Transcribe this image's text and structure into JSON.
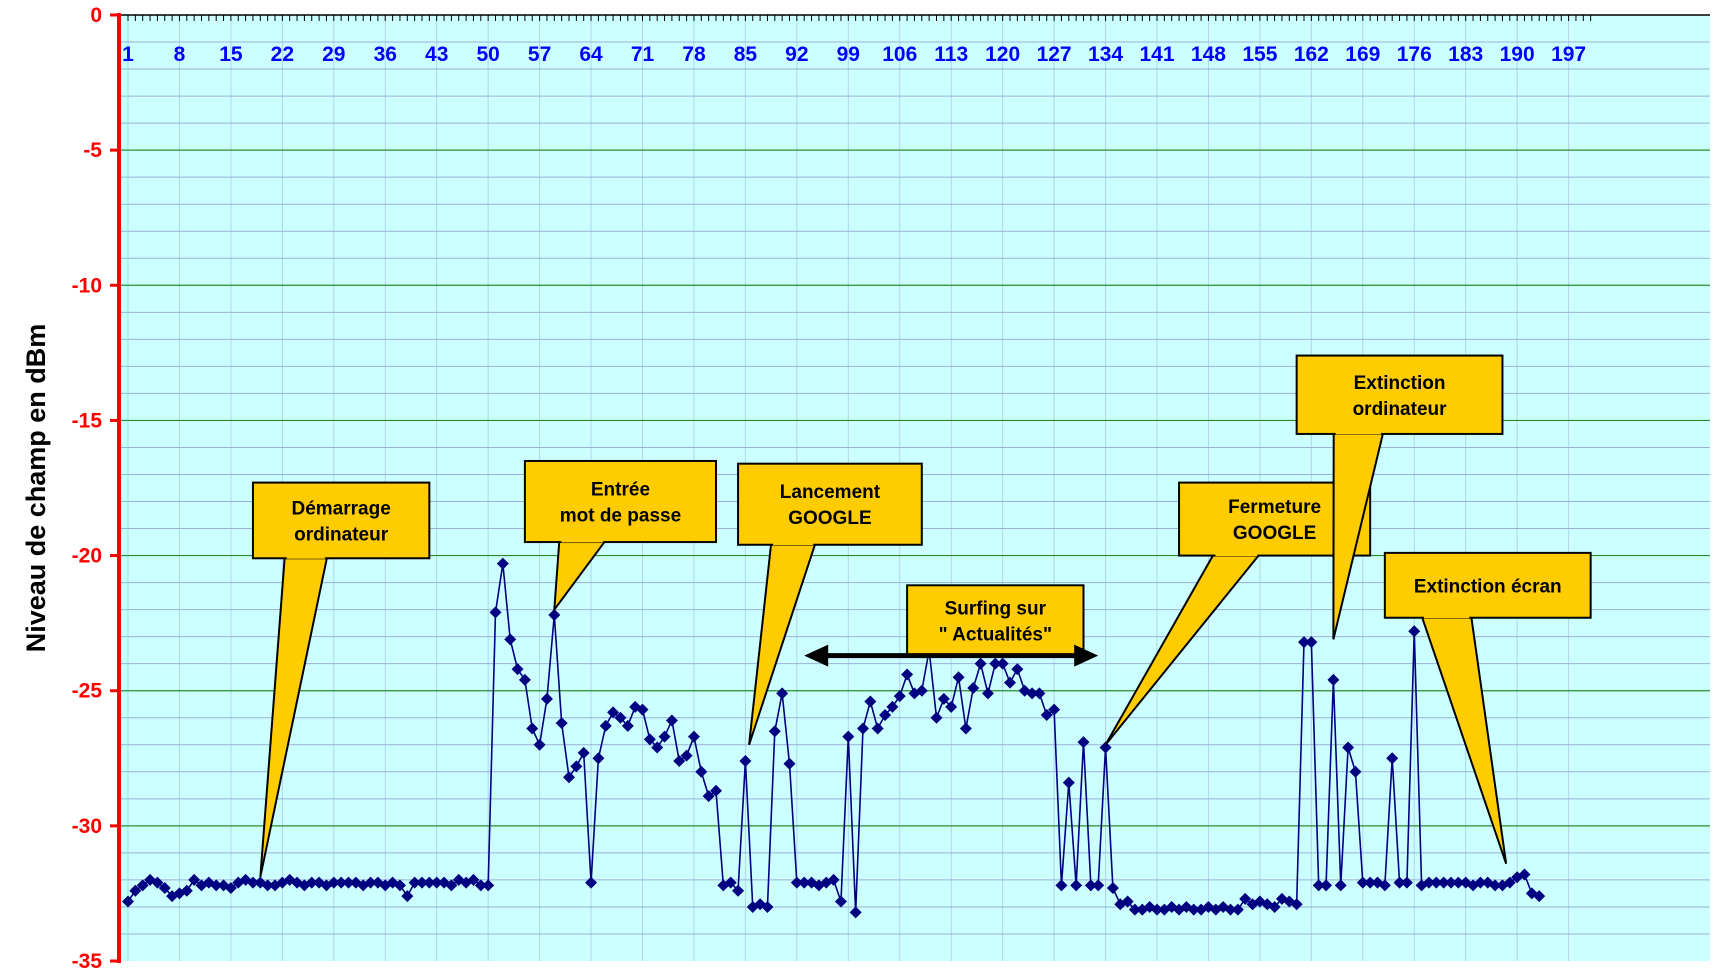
{
  "chart_data": {
    "type": "line",
    "ylabel": "Niveau de champ en dBm",
    "xlabel": "",
    "title": "",
    "ylim": [
      -35,
      0
    ],
    "xlim": [
      1,
      200
    ],
    "y_ticks": [
      0,
      -5,
      -10,
      -15,
      -20,
      -25,
      -30,
      -35
    ],
    "x_tick_labels": [
      "1",
      "8",
      "15",
      "22",
      "29",
      "36",
      "43",
      "50",
      "57",
      "64",
      "71",
      "78",
      "85",
      "92",
      "99",
      "106",
      "113",
      "120",
      "127",
      "134",
      "141",
      "148",
      "155",
      "162",
      "169",
      "176",
      "183",
      "190",
      "197"
    ],
    "x_tick_positions": [
      1,
      8,
      15,
      22,
      29,
      36,
      43,
      50,
      57,
      64,
      71,
      78,
      85,
      92,
      99,
      106,
      113,
      120,
      127,
      134,
      141,
      148,
      155,
      162,
      169,
      176,
      183,
      190,
      197
    ],
    "grid": true,
    "colors": {
      "plot_background": "#ccffff",
      "major_grid": "#2e8b2e",
      "minor_grid": "#9ab0d8",
      "series_line": "#000080",
      "y_axis": "#ff0000",
      "y_tick_labels": "#ff0000",
      "x_tick_labels": "#0000ff",
      "callout_fill": "#ffcc00",
      "arrow": "#000000"
    },
    "series": [
      {
        "values": [
          -32.8,
          -32.4,
          -32.2,
          -32,
          -32.1,
          -32.3,
          -32.6,
          -32.5,
          -32.4,
          -32,
          -32.2,
          -32.1,
          -32.2,
          -32.2,
          -32.3,
          -32.1,
          -32,
          -32.1,
          -32.1,
          -32.2,
          -32.2,
          -32.1,
          -32,
          -32.1,
          -32.2,
          -32.1,
          -32.1,
          -32.2,
          -32.1,
          -32.1,
          -32.1,
          -32.1,
          -32.2,
          -32.1,
          -32.1,
          -32.2,
          -32.1,
          -32.2,
          -32.6,
          -32.1,
          -32.1,
          -32.1,
          -32.1,
          -32.1,
          -32.2,
          -32,
          -32.1,
          -32,
          -32.2,
          -32.2,
          -22.1,
          -20.3,
          -23.1,
          -24.2,
          -24.6,
          -26.4,
          -27,
          -25.3,
          -22.2,
          -26.2,
          -28.2,
          -27.8,
          -27.3,
          -32.1,
          -27.5,
          -26.3,
          -25.8,
          -26,
          -26.3,
          -25.6,
          -25.7,
          -26.8,
          -27.1,
          -26.7,
          -26.1,
          -27.6,
          -27.4,
          -26.7,
          -28,
          -28.9,
          -28.7,
          -32.2,
          -32.1,
          -32.4,
          -27.6,
          -33,
          -32.9,
          -33,
          -26.5,
          -25.1,
          -27.7,
          -32.1,
          -32.1,
          -32.1,
          -32.2,
          -32.1,
          -32,
          -32.8,
          -26.7,
          -33.2,
          -26.4,
          -25.4,
          -26.4,
          -25.9,
          -25.6,
          -25.2,
          -24.4,
          -25.1,
          -25,
          -23.5,
          -26,
          -25.3,
          -25.6,
          -24.5,
          -26.4,
          -24.9,
          -24,
          -25.1,
          -24,
          -24,
          -24.7,
          -24.2,
          -25,
          -25.1,
          -25.1,
          -25.9,
          -25.7,
          -32.2,
          -28.4,
          -32.2,
          -26.9,
          -32.2,
          -32.2,
          -27.1,
          -32.3,
          -32.9,
          -32.8,
          -33.1,
          -33.1,
          -33,
          -33.1,
          -33.1,
          -33,
          -33.1,
          -33,
          -33.1,
          -33.1,
          -33,
          -33.1,
          -33,
          -33.1,
          -33.1,
          -32.7,
          -32.9,
          -32.8,
          -32.9,
          -33,
          -32.7,
          -32.8,
          -32.9,
          -23.2,
          -23.2,
          -32.2,
          -32.2,
          -24.6,
          -32.2,
          -27.1,
          -28,
          -32.1,
          -32.1,
          -32.1,
          -32.2,
          -27.5,
          -32.1,
          -32.1,
          -22.8,
          -32.2,
          -32.1,
          -32.1,
          -32.1,
          -32.1,
          -32.1,
          -32.1,
          -32.2,
          -32.1,
          -32.1,
          -32.2,
          -32.2,
          -32.1,
          -31.9,
          -31.8,
          -32.5,
          -32.6
        ]
      }
    ],
    "annotations": [
      {
        "id": "demarrage",
        "lines": [
          "Démarrage",
          "ordinateur"
        ],
        "target_x": 19,
        "target_y": -31.9,
        "box_x": [
          18,
          42
        ],
        "box_y": [
          -17.3,
          -20.1
        ]
      },
      {
        "id": "entree",
        "lines": [
          "Entrée",
          "mot de passe"
        ],
        "target_x": 59,
        "target_y": -22,
        "box_x": [
          55,
          81
        ],
        "box_y": [
          -16.5,
          -19.5
        ]
      },
      {
        "id": "lancement",
        "lines": [
          "Lancement",
          "GOOGLE"
        ],
        "target_x": 85.5,
        "target_y": -27,
        "box_x": [
          84,
          109
        ],
        "box_y": [
          -16.6,
          -19.6
        ]
      },
      {
        "id": "surfing",
        "lines": [
          "Surfing sur",
          "\" Actualités\""
        ],
        "box_x": [
          107,
          131
        ],
        "box_y": [
          -21.1,
          -23.7
        ]
      },
      {
        "id": "fermeture",
        "lines": [
          "Fermeture",
          "GOOGLE"
        ],
        "target_x": 134,
        "target_y": -27,
        "box_x": [
          144,
          170
        ],
        "box_y": [
          -17.3,
          -20
        ]
      },
      {
        "id": "extinction-ordinateur",
        "lines": [
          "Extinction",
          "ordinateur"
        ],
        "target_x": 165,
        "target_y": -23.1,
        "box_x": [
          160,
          188
        ],
        "box_y": [
          -12.6,
          -15.5
        ]
      },
      {
        "id": "extinction-ecran",
        "lines": [
          "Extinction écran"
        ],
        "target_x": 188.5,
        "target_y": -31.4,
        "box_x": [
          172,
          200
        ],
        "box_y": [
          -19.9,
          -22.3
        ]
      }
    ],
    "double_arrow": {
      "x_start": 93,
      "x_end": 133,
      "y": -23.7
    }
  }
}
